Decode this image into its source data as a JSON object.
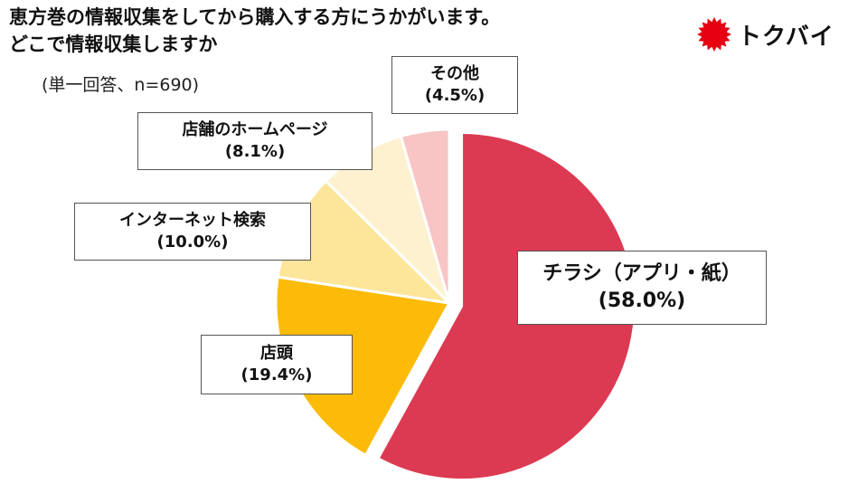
{
  "header": {
    "title_line1": "恵方巻の情報収集をしてから購入する方にうかがいます。",
    "title_line2": "どこで情報収集しますか",
    "subtitle": "(単一回答、n=690)",
    "logo_text": "トクバイ",
    "logo_color": "#e60012"
  },
  "chart_data": {
    "type": "pie",
    "title": "恵方巻の情報収集をしてから購入する方にうかがいます。どこで情報収集しますか",
    "subtitle": "(単一回答、n=690)",
    "start_angle_deg": 0,
    "direction": "clockwise",
    "slices": [
      {
        "label": "チラシ（アプリ・紙）",
        "value": 58.0,
        "pct_label": "(58.0%)",
        "color": "#dc3a52",
        "exploded": true
      },
      {
        "label": "店頭",
        "value": 19.4,
        "pct_label": "(19.4%)",
        "color": "#fbbb08",
        "exploded": false
      },
      {
        "label": "インターネット検索",
        "value": 10.0,
        "pct_label": "(10.0%)",
        "color": "#fde59a",
        "exploded": false
      },
      {
        "label": "店舗のホームページ",
        "value": 8.1,
        "pct_label": "(8.1%)",
        "color": "#fdf1cf",
        "exploded": false
      },
      {
        "label": "その他",
        "value": 4.5,
        "pct_label": "(4.5%)",
        "color": "#f9c4c4",
        "exploded": false
      }
    ]
  }
}
